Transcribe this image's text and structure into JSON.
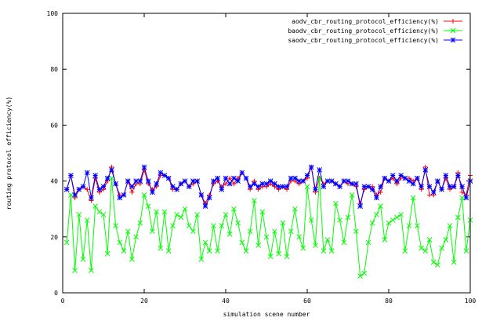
{
  "chart_data": {
    "type": "line",
    "title": "",
    "xlabel": "simulation scene number",
    "ylabel": "routing protocol efficiency(%)",
    "xlim": [
      0,
      100
    ],
    "ylim": [
      0,
      100
    ],
    "x_ticks": [
      0,
      20,
      40,
      60,
      80,
      100
    ],
    "y_ticks": [
      0,
      20,
      40,
      60,
      80,
      100
    ],
    "x": [
      1,
      2,
      3,
      4,
      5,
      6,
      7,
      8,
      9,
      10,
      11,
      12,
      13,
      14,
      15,
      16,
      17,
      18,
      19,
      20,
      21,
      22,
      23,
      24,
      25,
      26,
      27,
      28,
      29,
      30,
      31,
      32,
      33,
      34,
      35,
      36,
      37,
      38,
      39,
      40,
      41,
      42,
      43,
      44,
      45,
      46,
      47,
      48,
      49,
      50,
      51,
      52,
      53,
      54,
      55,
      56,
      57,
      58,
      59,
      60,
      61,
      62,
      63,
      64,
      65,
      66,
      67,
      68,
      69,
      70,
      71,
      72,
      73,
      74,
      75,
      76,
      77,
      78,
      79,
      80,
      81,
      82,
      83,
      84,
      85,
      86,
      87,
      88,
      89,
      90,
      91,
      92,
      93,
      94,
      95,
      96,
      97,
      98,
      99,
      100
    ],
    "legend_position": "top-right",
    "series": [
      {
        "name": "aodv_cbr_routing_protocol_efficiency(%)",
        "color": "#ff0000",
        "marker": "plus",
        "values": [
          37,
          42,
          34,
          37,
          38,
          37,
          33,
          41,
          36,
          37,
          40,
          45,
          39,
          35,
          35,
          40,
          36,
          39,
          39,
          44,
          39,
          37,
          38,
          42,
          42,
          41,
          37,
          37,
          39,
          40,
          38,
          39,
          40,
          35,
          32,
          35,
          39,
          40,
          38,
          39,
          41,
          39,
          41,
          43,
          41,
          37,
          40,
          37,
          38,
          38,
          39,
          38,
          37,
          38,
          37,
          40,
          40,
          39,
          40,
          41,
          45,
          36,
          41,
          39,
          40,
          40,
          39,
          38,
          40,
          39,
          39,
          38,
          32,
          37,
          38,
          38,
          35,
          36,
          41,
          40,
          41,
          39,
          41,
          41,
          41,
          40,
          41,
          37,
          45,
          35,
          35,
          40,
          37,
          41,
          37,
          38,
          43,
          36,
          35,
          42
        ]
      },
      {
        "name": "baodv_cbr_routing_protocol_efficiency(%)",
        "color": "#00ff00",
        "marker": "cross",
        "values": [
          18,
          35,
          8,
          28,
          12,
          26,
          8,
          31,
          29,
          28,
          14,
          41,
          24,
          18,
          15,
          22,
          12,
          20,
          25,
          35,
          31,
          22,
          29,
          16,
          29,
          15,
          24,
          28,
          27,
          30,
          24,
          22,
          28,
          12,
          18,
          15,
          24,
          15,
          24,
          28,
          21,
          30,
          25,
          18,
          15,
          22,
          33,
          17,
          29,
          20,
          13,
          22,
          14,
          25,
          13,
          22,
          30,
          20,
          16,
          38,
          26,
          17,
          41,
          15,
          19,
          15,
          32,
          26,
          18,
          27,
          35,
          22,
          6,
          7,
          18,
          25,
          28,
          31,
          19,
          25,
          26,
          27,
          28,
          15,
          24,
          34,
          24,
          16,
          15,
          19,
          11,
          10,
          16,
          19,
          24,
          11,
          27,
          34,
          15,
          26
        ]
      },
      {
        "name": "saodv_cbr_routing_protocol_efficiency(%)",
        "color": "#0000ff",
        "marker": "asterisk",
        "values": [
          37,
          42,
          35,
          37,
          38,
          43,
          34,
          42,
          37,
          38,
          41,
          44,
          39,
          34,
          35,
          40,
          38,
          40,
          40,
          45,
          40,
          36,
          39,
          43,
          42,
          41,
          38,
          37,
          39,
          40,
          38,
          40,
          40,
          35,
          31,
          34,
          40,
          41,
          37,
          41,
          39,
          41,
          40,
          43,
          41,
          38,
          39,
          38,
          39,
          39,
          40,
          39,
          38,
          38,
          38,
          41,
          41,
          40,
          40,
          42,
          45,
          37,
          44,
          38,
          40,
          40,
          39,
          38,
          40,
          40,
          39,
          39,
          31,
          38,
          38,
          37,
          34,
          38,
          41,
          40,
          42,
          40,
          42,
          41,
          40,
          39,
          41,
          38,
          44,
          38,
          36,
          40,
          37,
          42,
          38,
          38,
          42,
          38,
          34,
          40
        ]
      }
    ]
  }
}
